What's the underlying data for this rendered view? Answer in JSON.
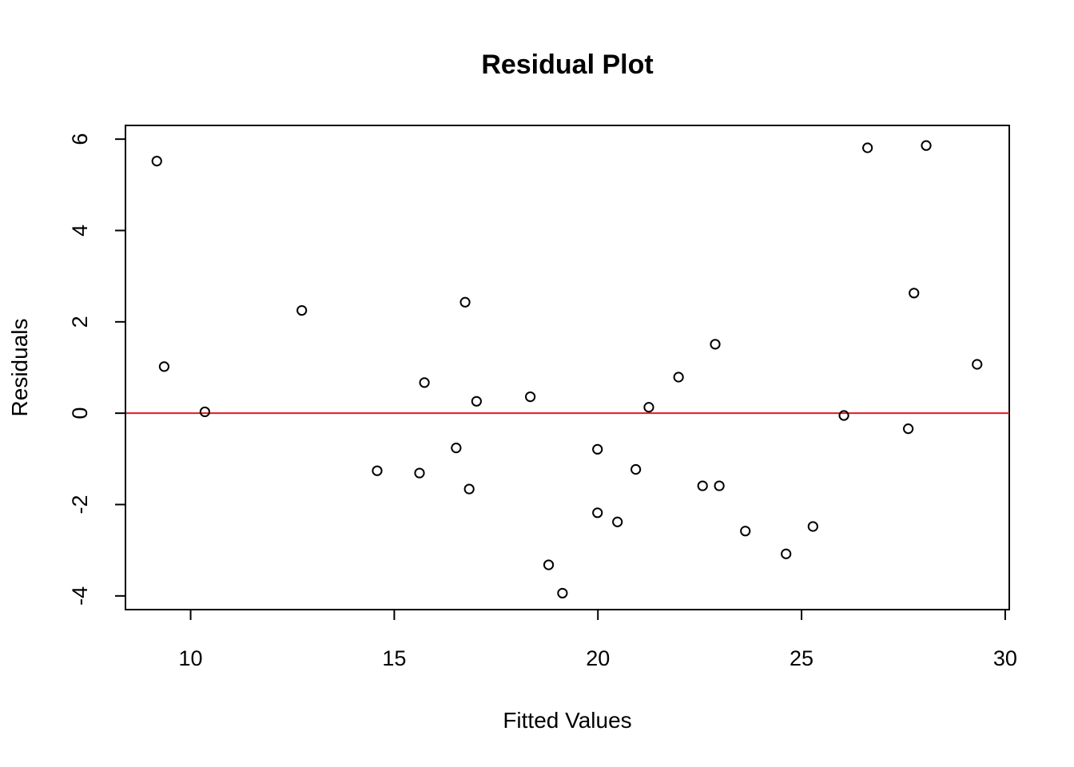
{
  "chart_data": {
    "type": "scatter",
    "title": "Residual Plot",
    "xlabel": "Fitted Values",
    "ylabel": "Residuals",
    "xlim": [
      8.4,
      30.1
    ],
    "ylim": [
      -4.3,
      6.3
    ],
    "xticks": [
      10,
      15,
      20,
      25,
      30
    ],
    "yticks": [
      -4,
      -2,
      0,
      2,
      4,
      6
    ],
    "grid": false,
    "reference_line": {
      "y": 0,
      "color": "#e31a1c"
    },
    "point_color": "#000000",
    "points": [
      {
        "x": 9.17,
        "y": 5.52
      },
      {
        "x": 9.35,
        "y": 1.02
      },
      {
        "x": 10.35,
        "y": 0.03
      },
      {
        "x": 12.73,
        "y": 2.25
      },
      {
        "x": 14.58,
        "y": -1.26
      },
      {
        "x": 15.62,
        "y": -1.31
      },
      {
        "x": 15.74,
        "y": 0.67
      },
      {
        "x": 16.52,
        "y": -0.76
      },
      {
        "x": 16.74,
        "y": 2.43
      },
      {
        "x": 16.84,
        "y": -1.66
      },
      {
        "x": 17.02,
        "y": 0.26
      },
      {
        "x": 18.34,
        "y": 0.36
      },
      {
        "x": 18.79,
        "y": -3.32
      },
      {
        "x": 19.13,
        "y": -3.94
      },
      {
        "x": 19.99,
        "y": -0.79
      },
      {
        "x": 19.99,
        "y": -2.18
      },
      {
        "x": 20.48,
        "y": -2.38
      },
      {
        "x": 20.93,
        "y": -1.23
      },
      {
        "x": 21.25,
        "y": 0.13
      },
      {
        "x": 21.98,
        "y": 0.79
      },
      {
        "x": 22.57,
        "y": -1.59
      },
      {
        "x": 22.88,
        "y": 1.51
      },
      {
        "x": 22.98,
        "y": -1.59
      },
      {
        "x": 23.62,
        "y": -2.58
      },
      {
        "x": 24.62,
        "y": -3.08
      },
      {
        "x": 25.28,
        "y": -2.48
      },
      {
        "x": 26.04,
        "y": -0.05
      },
      {
        "x": 26.62,
        "y": 5.81
      },
      {
        "x": 27.62,
        "y": -0.34
      },
      {
        "x": 27.76,
        "y": 2.63
      },
      {
        "x": 28.06,
        "y": 5.86
      },
      {
        "x": 29.31,
        "y": 1.07
      }
    ]
  }
}
